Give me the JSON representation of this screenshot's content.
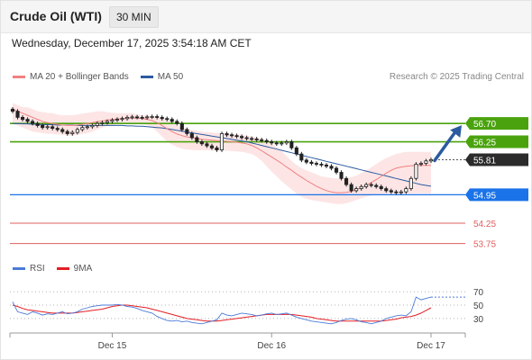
{
  "header": {
    "instrument": "Crude Oil (WTI)",
    "timeframe": "30 MIN"
  },
  "datetime": "Wednesday, December 17, 2025 3:54:18 AM CET",
  "legend": {
    "main": [
      {
        "label": "MA 20 + Bollinger Bands",
        "color": "#f08080"
      },
      {
        "label": "MA 50",
        "color": "#2c5aa0"
      }
    ],
    "rsi": [
      {
        "label": "RSI",
        "color": "#4a7bd8"
      },
      {
        "label": "9MA",
        "color": "#e31e24"
      }
    ]
  },
  "credit": "Research © 2025 Trading Central",
  "colors": {
    "resistance": "#4aa30e",
    "pivot": "#1a73e8",
    "support": "#e06060",
    "current_bg": "#2b2b2b",
    "bollinger_fill": "#fde0e0",
    "ma20": "#f08080",
    "ma50": "#2c5aa0",
    "rsi": "#4a7bd8",
    "rsi_ma": "#e31e24",
    "arrow": "#2c5aa0",
    "candle_up": "#ffffff",
    "candle_down": "#222222"
  },
  "chart_data": [
    {
      "type": "line",
      "title": "",
      "ylim": [
        53.5,
        57.3
      ],
      "x_tick_labels": [
        "Dec 15",
        "Dec 16",
        "Dec 17"
      ],
      "x_tick_index": [
        20,
        52,
        84
      ],
      "levels": [
        {
          "value": 56.7,
          "label": "56.70",
          "kind": "resistance"
        },
        {
          "value": 56.25,
          "label": "56.25",
          "kind": "resistance"
        },
        {
          "value": 55.81,
          "label": "55.81",
          "kind": "current"
        },
        {
          "value": 54.95,
          "label": "54.95",
          "kind": "pivot"
        },
        {
          "value": 54.25,
          "label": "54.25",
          "kind": "support"
        },
        {
          "value": 53.75,
          "label": "53.75",
          "kind": "support"
        }
      ],
      "close": [
        57.0,
        56.85,
        56.8,
        56.75,
        56.7,
        56.65,
        56.6,
        56.62,
        56.58,
        56.55,
        56.5,
        56.45,
        56.48,
        56.55,
        56.6,
        56.62,
        56.65,
        56.7,
        56.72,
        56.75,
        56.78,
        56.8,
        56.82,
        56.85,
        56.86,
        56.85,
        56.84,
        56.86,
        56.87,
        56.85,
        56.82,
        56.8,
        56.75,
        56.7,
        56.55,
        56.45,
        56.35,
        56.25,
        56.2,
        56.15,
        56.1,
        56.05,
        56.45,
        56.42,
        56.4,
        56.38,
        56.35,
        56.33,
        56.32,
        56.3,
        56.28,
        56.25,
        56.22,
        56.2,
        56.22,
        56.25,
        56.1,
        55.95,
        55.8,
        55.75,
        55.72,
        55.7,
        55.68,
        55.65,
        55.6,
        55.5,
        55.35,
        55.2,
        55.05,
        55.1,
        55.15,
        55.2,
        55.18,
        55.15,
        55.1,
        55.05,
        55.02,
        55.0,
        55.02,
        55.1,
        55.35,
        55.7,
        55.72,
        55.78,
        55.81
      ],
      "ma20": [
        57.05,
        57.0,
        56.95,
        56.9,
        56.85,
        56.8,
        56.75,
        56.72,
        56.7,
        56.68,
        56.66,
        56.65,
        56.65,
        56.66,
        56.68,
        56.7,
        56.72,
        56.74,
        56.76,
        56.78,
        56.8,
        56.81,
        56.82,
        56.83,
        56.83,
        56.83,
        56.82,
        56.8,
        56.77,
        56.72,
        56.65,
        56.57,
        56.5,
        56.44,
        56.4,
        56.37,
        56.35,
        56.33,
        56.31,
        56.3,
        56.29,
        56.28,
        56.27,
        56.26,
        56.25,
        56.24,
        56.22,
        56.2,
        56.16,
        56.1,
        56.03,
        55.95,
        55.88,
        55.8,
        55.72,
        55.63,
        55.55,
        55.46,
        55.38,
        55.3,
        55.23,
        55.16,
        55.1,
        55.05,
        55.02,
        55.0,
        55.0,
        55.01,
        55.03,
        55.07,
        55.12,
        55.18,
        55.25,
        55.32,
        55.4,
        55.48,
        55.55,
        55.6,
        55.63,
        55.65,
        55.66,
        55.67,
        55.67,
        55.67,
        55.67
      ],
      "bb_upper": [
        57.2,
        57.15,
        57.1,
        57.1,
        57.05,
        57.0,
        56.98,
        56.96,
        56.95,
        56.92,
        56.9,
        56.9,
        56.9,
        56.92,
        56.94,
        56.96,
        56.98,
        57.0,
        57.0,
        56.98,
        56.96,
        56.95,
        56.95,
        56.95,
        56.95,
        56.92,
        56.9,
        56.9,
        56.88,
        56.85,
        56.82,
        56.78,
        56.72,
        56.65,
        56.6,
        56.56,
        56.54,
        56.52,
        56.5,
        56.49,
        56.48,
        56.47,
        56.46,
        56.45,
        56.44,
        56.43,
        56.42,
        56.4,
        56.38,
        56.35,
        56.3,
        56.25,
        56.2,
        56.12,
        56.02,
        55.9,
        55.78,
        55.68,
        55.6,
        55.55,
        55.5,
        55.45,
        55.4,
        55.38,
        55.36,
        55.35,
        55.35,
        55.36,
        55.38,
        55.42,
        55.48,
        55.55,
        55.62,
        55.7,
        55.78,
        55.85,
        55.9,
        55.95,
        55.98,
        56.0,
        56.0,
        56.0,
        56.0,
        56.0,
        56.0
      ],
      "bb_lower": [
        56.7,
        56.65,
        56.6,
        56.55,
        56.5,
        56.48,
        56.46,
        56.45,
        56.44,
        56.43,
        56.42,
        56.41,
        56.4,
        56.42,
        56.44,
        56.46,
        56.5,
        56.55,
        56.6,
        56.64,
        56.66,
        56.68,
        56.7,
        56.7,
        56.7,
        56.69,
        56.68,
        56.66,
        56.6,
        56.5,
        56.38,
        56.26,
        56.18,
        56.12,
        56.08,
        56.06,
        56.05,
        56.04,
        56.04,
        56.04,
        56.04,
        56.04,
        56.04,
        56.03,
        56.02,
        56.01,
        56.0,
        55.98,
        55.95,
        55.88,
        55.78,
        55.65,
        55.52,
        55.4,
        55.28,
        55.18,
        55.08,
        54.98,
        54.9,
        54.85,
        54.82,
        54.8,
        54.78,
        54.76,
        54.74,
        54.72,
        54.72,
        54.74,
        54.78,
        54.82,
        54.86,
        54.9,
        54.93,
        54.95,
        54.96,
        54.97,
        54.98,
        54.98,
        54.98,
        54.98,
        54.98,
        54.98,
        54.98,
        54.98,
        54.98
      ],
      "ma50": [
        56.7,
        56.7,
        56.69,
        56.69,
        56.68,
        56.68,
        56.67,
        56.67,
        56.67,
        56.66,
        56.66,
        56.66,
        56.66,
        56.65,
        56.65,
        56.65,
        56.65,
        56.65,
        56.65,
        56.65,
        56.65,
        56.65,
        56.65,
        56.64,
        56.64,
        56.63,
        56.63,
        56.62,
        56.61,
        56.6,
        56.59,
        56.57,
        56.55,
        56.53,
        56.51,
        56.49,
        56.47,
        56.45,
        56.43,
        56.41,
        56.39,
        56.37,
        56.35,
        56.33,
        56.31,
        56.29,
        56.27,
        56.25,
        56.22,
        56.19,
        56.16,
        56.13,
        56.1,
        56.07,
        56.04,
        56.01,
        55.98,
        55.95,
        55.92,
        55.89,
        55.86,
        55.83,
        55.8,
        55.77,
        55.74,
        55.71,
        55.68,
        55.65,
        55.62,
        55.59,
        55.56,
        55.53,
        55.5,
        55.47,
        55.44,
        55.41,
        55.38,
        55.35,
        55.32,
        55.29,
        55.26,
        55.23,
        55.2,
        55.18,
        55.16
      ]
    },
    {
      "type": "line",
      "title": "",
      "ylim": [
        15,
        85
      ],
      "y_tick_values": [
        70,
        50,
        30
      ],
      "rsi": [
        55,
        40,
        38,
        36,
        40,
        38,
        35,
        37,
        36,
        38,
        40,
        37,
        38,
        40,
        44,
        46,
        48,
        49,
        50,
        50,
        50,
        51,
        50,
        48,
        47,
        45,
        42,
        40,
        38,
        33,
        30,
        27,
        26,
        27,
        25,
        26,
        24,
        23,
        22,
        24,
        26,
        28,
        38,
        35,
        34,
        36,
        38,
        37,
        36,
        34,
        35,
        37,
        38,
        36,
        37,
        38,
        35,
        32,
        30,
        28,
        26,
        25,
        24,
        23,
        22,
        24,
        27,
        29,
        30,
        28,
        25,
        24,
        22,
        24,
        26,
        30,
        32,
        34,
        35,
        34,
        40,
        62,
        58,
        60,
        62
      ],
      "rsi_ma": [
        50,
        48,
        45,
        43,
        42,
        41,
        40,
        39,
        38,
        38,
        38,
        38,
        38,
        39,
        40,
        41,
        42,
        43,
        44,
        46,
        48,
        49,
        50,
        50,
        49,
        48,
        47,
        46,
        44,
        42,
        40,
        38,
        36,
        34,
        32,
        30,
        29,
        28,
        27,
        26,
        26,
        26,
        27,
        28,
        29,
        30,
        31,
        32,
        33,
        34,
        35,
        36,
        36,
        36,
        36,
        36,
        36,
        35,
        34,
        33,
        32,
        30,
        29,
        28,
        27,
        26,
        26,
        26,
        26,
        26,
        26,
        26,
        26,
        26,
        26,
        27,
        28,
        29,
        31,
        32,
        33,
        35,
        38,
        42,
        46
      ]
    }
  ]
}
